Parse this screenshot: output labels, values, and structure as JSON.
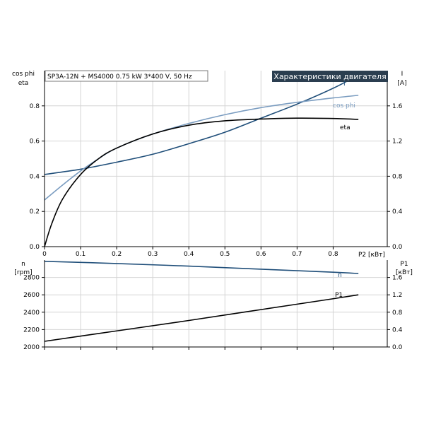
{
  "chart_data": [
    {
      "type": "line",
      "info_label": "SP3A-12N + MS4000   0.75 kW   3*400 V, 50 Hz",
      "title": "Характеристики двигателя",
      "xlabel": "P2 [кВт]",
      "xlim": [
        0,
        0.95
      ],
      "x_ticks": [
        "0",
        "0.1",
        "0.2",
        "0.3",
        "0.4",
        "0.5",
        "0.6",
        "0.7",
        "0.8"
      ],
      "ylabel_left": [
        "cos phi",
        "eta"
      ],
      "ylim_left": [
        0,
        1.0
      ],
      "y_ticks_left": [
        "0.0",
        "0.2",
        "0.4",
        "0.6",
        "0.8"
      ],
      "ylabel_right": [
        "I",
        "[A]"
      ],
      "ylim_right": [
        0,
        2.0
      ],
      "y_ticks_right": [
        "0.0",
        "0.4",
        "0.8",
        "1.2",
        "1.6"
      ],
      "grid": true,
      "series": [
        {
          "name": "I",
          "axis": "right",
          "color": "#1f4e79",
          "x": [
            0,
            0.1,
            0.2,
            0.3,
            0.4,
            0.5,
            0.6,
            0.7,
            0.8,
            0.87
          ],
          "y": [
            0.82,
            0.88,
            0.96,
            1.05,
            1.17,
            1.3,
            1.46,
            1.62,
            1.8,
            1.95
          ]
        },
        {
          "name": "cos phi",
          "axis": "left",
          "color": "#7a9cc0",
          "x": [
            0,
            0.05,
            0.1,
            0.15,
            0.2,
            0.3,
            0.4,
            0.5,
            0.6,
            0.7,
            0.8,
            0.87
          ],
          "y": [
            0.265,
            0.35,
            0.43,
            0.5,
            0.56,
            0.64,
            0.7,
            0.75,
            0.79,
            0.82,
            0.845,
            0.86
          ]
        },
        {
          "name": "eta",
          "axis": "left",
          "color": "#000000",
          "x": [
            0,
            0.02,
            0.05,
            0.1,
            0.15,
            0.2,
            0.3,
            0.4,
            0.5,
            0.6,
            0.7,
            0.8,
            0.87
          ],
          "y": [
            0,
            0.13,
            0.27,
            0.41,
            0.5,
            0.56,
            0.64,
            0.69,
            0.715,
            0.725,
            0.73,
            0.728,
            0.723
          ]
        }
      ]
    },
    {
      "type": "line",
      "xlim": [
        0,
        0.95
      ],
      "ylabel_left": [
        "n",
        "[rpm]"
      ],
      "ylim_left": [
        2000,
        3000
      ],
      "y_ticks_left": [
        "2000",
        "2200",
        "2400",
        "2600",
        "2800"
      ],
      "ylabel_right": [
        "P1",
        "[кВт]"
      ],
      "ylim_right": [
        0,
        2.0
      ],
      "y_ticks_right": [
        "0.0",
        "0.4",
        "0.8",
        "1.2",
        "1.6"
      ],
      "grid": true,
      "series": [
        {
          "name": "n",
          "axis": "left",
          "color": "#1f4e79",
          "x": [
            0,
            0.2,
            0.4,
            0.6,
            0.8,
            0.87
          ],
          "y": [
            2985,
            2960,
            2930,
            2895,
            2860,
            2845
          ]
        },
        {
          "name": "P1",
          "axis": "right",
          "color": "#000000",
          "x": [
            0,
            0.2,
            0.4,
            0.6,
            0.8,
            0.87
          ],
          "y": [
            0.13,
            0.37,
            0.61,
            0.86,
            1.11,
            1.2
          ]
        }
      ]
    }
  ]
}
